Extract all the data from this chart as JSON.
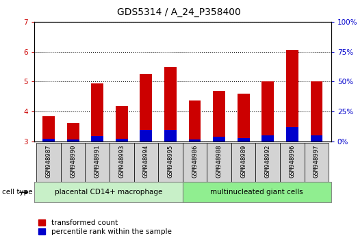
{
  "title": "GDS5314 / A_24_P358400",
  "samples": [
    "GSM948987",
    "GSM948990",
    "GSM948991",
    "GSM948993",
    "GSM948994",
    "GSM948995",
    "GSM948986",
    "GSM948988",
    "GSM948989",
    "GSM948992",
    "GSM948996",
    "GSM948997"
  ],
  "transformed_count": [
    3.85,
    3.62,
    4.95,
    4.18,
    5.27,
    5.48,
    4.38,
    4.7,
    4.6,
    5.0,
    6.07,
    5.0
  ],
  "percentile_rank": [
    2.5,
    2.0,
    4.5,
    2.5,
    10.0,
    10.0,
    1.5,
    4.0,
    3.0,
    5.0,
    12.0,
    5.0
  ],
  "bar_bottom": 3.0,
  "red_color": "#cc0000",
  "blue_color": "#0000cc",
  "ylim_left": [
    3.0,
    7.0
  ],
  "ylim_right": [
    0,
    100
  ],
  "yticks_left": [
    3,
    4,
    5,
    6,
    7
  ],
  "yticks_right": [
    0,
    25,
    50,
    75,
    100
  ],
  "group1_label": "placental CD14+ macrophage",
  "group2_label": "multinucleated giant cells",
  "group1_count": 6,
  "group2_count": 6,
  "cell_type_label": "cell type",
  "legend1": "transformed count",
  "legend2": "percentile rank within the sample",
  "bg_plot": "#ffffff",
  "bg_xticklabels": "#d3d3d3",
  "group1_color": "#c8f0c8",
  "group2_color": "#90ee90",
  "bar_width": 0.5,
  "left_axis_color": "#cc0000",
  "right_axis_color": "#0000cc",
  "title_fontsize": 10,
  "tick_fontsize": 7.5,
  "label_fontsize": 8
}
